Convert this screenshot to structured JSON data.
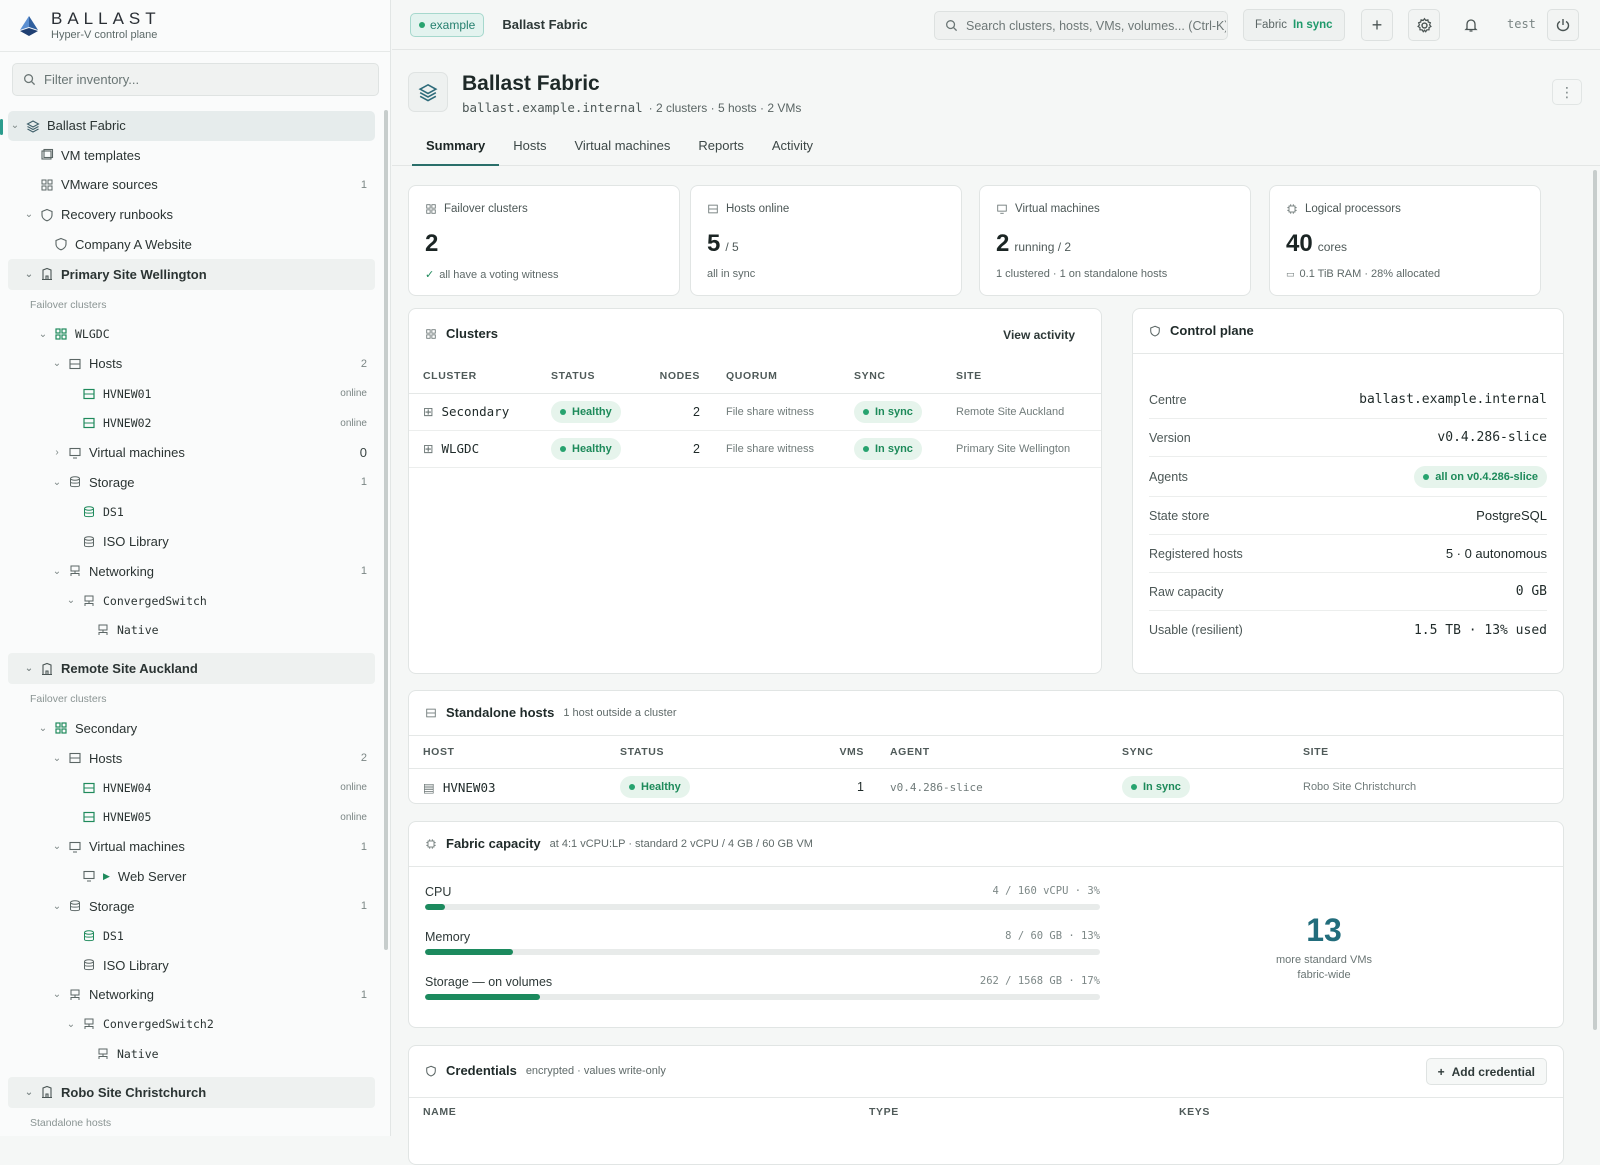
{
  "brand": {
    "name": "BALLAST",
    "subtitle": "Hyper-V control plane"
  },
  "sidebar": {
    "filter_placeholder": "Filter inventory...",
    "top": [
      {
        "label": "Ballast Fabric",
        "icon": "layers-icon"
      },
      {
        "label": "VM templates",
        "icon": "template-icon"
      },
      {
        "label": "VMware sources",
        "count": "1",
        "icon": "grid-icon"
      },
      {
        "label": "Recovery runbooks",
        "icon": "shield-icon"
      },
      {
        "label": "Company A Website",
        "icon": "shield-icon"
      }
    ],
    "sites": [
      {
        "label": "Primary Site Wellington",
        "section": "Failover clusters",
        "cluster": "WLGDC",
        "hosts_label": "Hosts",
        "hosts_count": "2",
        "hosts": [
          {
            "name": "HVNEW01",
            "status": "online"
          },
          {
            "name": "HVNEW02",
            "status": "online"
          }
        ],
        "vms_label": "Virtual machines",
        "vms_count": "0",
        "storage_label": "Storage",
        "storage_count": "1",
        "storage": [
          "DS1",
          "ISO Library"
        ],
        "net_label": "Networking",
        "net_count": "1",
        "switch": "ConvergedSwitch",
        "native": "Native"
      },
      {
        "label": "Remote Site Auckland",
        "section": "Failover clusters",
        "cluster": "Secondary",
        "hosts_label": "Hosts",
        "hosts_count": "2",
        "hosts": [
          {
            "name": "HVNEW04",
            "status": "online"
          },
          {
            "name": "HVNEW05",
            "status": "online"
          }
        ],
        "vms_label": "Virtual machines",
        "vms_count": "1",
        "vm": "Web Server",
        "storage_label": "Storage",
        "storage_count": "1",
        "storage": [
          "DS1",
          "ISO Library"
        ],
        "net_label": "Networking",
        "net_count": "1",
        "switch": "ConvergedSwitch2",
        "native": "Native"
      },
      {
        "label": "Robo Site Christchurch",
        "section": "Standalone hosts"
      }
    ]
  },
  "topbar": {
    "env_tag": "example",
    "crumb": "Ballast Fabric",
    "search_placeholder": "Search clusters, hosts, VMs, volumes... (Ctrl-K)",
    "fabric_label": "Fabric",
    "fabric_status": "In sync",
    "user": "test"
  },
  "header": {
    "title": "Ballast Fabric",
    "domain": "ballast.example.internal",
    "meta": "· 2 clusters · 5 hosts · 2 VMs",
    "tabs": [
      "Summary",
      "Hosts",
      "Virtual machines",
      "Reports",
      "Activity"
    ]
  },
  "stats": [
    {
      "label": "Failover clusters",
      "value": "2",
      "unit": "",
      "note": "all have a voting witness",
      "icon": "grid-icon"
    },
    {
      "label": "Hosts online",
      "value": "5",
      "unit": "/ 5",
      "note": "all in sync",
      "icon": "server-icon"
    },
    {
      "label": "Virtual machines",
      "value": "2",
      "unit": "running / 2",
      "note": "1 clustered · 1 on standalone hosts",
      "icon": "monitor-icon"
    },
    {
      "label": "Logical processors",
      "value": "40",
      "unit": "cores",
      "note": "0.1 TiB RAM · 28% allocated",
      "icon": "cpu-icon"
    }
  ],
  "clusters": {
    "title": "Clusters",
    "action": "View activity",
    "columns": [
      "CLUSTER",
      "STATUS",
      "NODES",
      "QUORUM",
      "SYNC",
      "SITE"
    ],
    "rows": [
      {
        "name": "Secondary",
        "status": "Healthy",
        "nodes": "2",
        "quorum": "File share witness",
        "sync": "In sync",
        "site": "Remote Site Auckland"
      },
      {
        "name": "WLGDC",
        "status": "Healthy",
        "nodes": "2",
        "quorum": "File share witness",
        "sync": "In sync",
        "site": "Primary Site Wellington"
      }
    ]
  },
  "control_plane": {
    "title": "Control plane",
    "rows": [
      {
        "k": "Centre",
        "v": "ballast.example.internal",
        "mono": true
      },
      {
        "k": "Version",
        "v": "v0.4.286-slice",
        "mono": true
      },
      {
        "k": "Agents",
        "v": "all on v0.4.286-slice",
        "badge": true
      },
      {
        "k": "State store",
        "v": "PostgreSQL"
      },
      {
        "k": "Registered hosts",
        "v": "5 · 0 autonomous"
      },
      {
        "k": "Raw capacity",
        "v": "0 GB",
        "mono": true
      },
      {
        "k": "Usable (resilient)",
        "v": "1.5 TB · 13% used",
        "mono": true
      }
    ]
  },
  "standalone": {
    "title": "Standalone hosts",
    "aux": "1 host outside a cluster",
    "columns": [
      "HOST",
      "STATUS",
      "VMS",
      "AGENT",
      "SYNC",
      "SITE"
    ],
    "rows": [
      {
        "host": "HVNEW03",
        "status": "Healthy",
        "vms": "1",
        "agent": "v0.4.286-slice",
        "sync": "In sync",
        "site": "Robo Site Christchurch"
      }
    ]
  },
  "capacity": {
    "title": "Fabric capacity",
    "aux": "at 4:1 vCPU:LP · standard 2 vCPU / 4 GB / 60 GB VM",
    "bars": [
      {
        "label": "CPU",
        "detail": "4 / 160 vCPU · 3%",
        "pct": 3
      },
      {
        "label": "Memory",
        "detail": "8 / 60 GB · 13%",
        "pct": 13
      },
      {
        "label": "Storage — on volumes",
        "detail": "262 / 1568 GB · 17%",
        "pct": 17
      }
    ],
    "headroom": "13",
    "headroom_label_1": "more standard VMs",
    "headroom_label_2": "fabric-wide"
  },
  "credentials": {
    "title": "Credentials",
    "aux": "encrypted · values write-only",
    "add": "Add credential",
    "columns": [
      "NAME",
      "TYPE",
      "KEYS"
    ]
  },
  "colors": {
    "accent": "#2a6f6a",
    "healthy": "#1d8a5a",
    "bar": "#1c8a5e",
    "headroom": "#226d7c"
  }
}
